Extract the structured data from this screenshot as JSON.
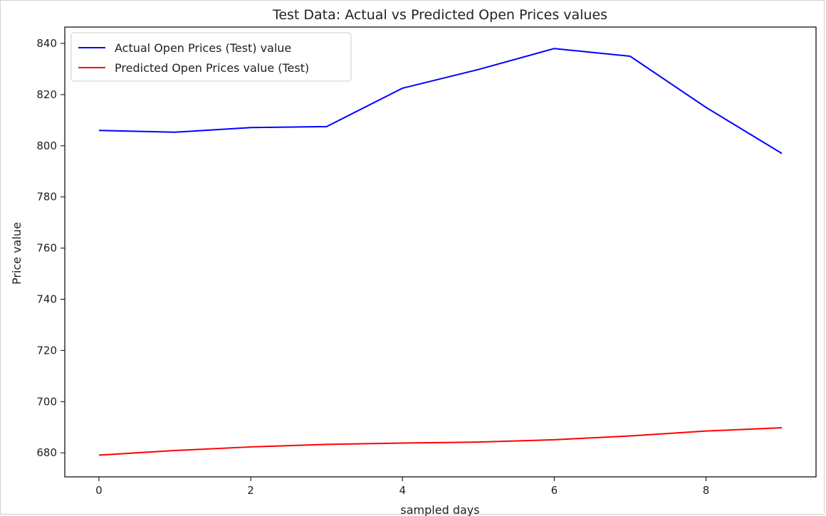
{
  "chart_data": {
    "type": "line",
    "title": "Test Data: Actual vs Predicted Open Prices values",
    "xlabel": "sampled days",
    "ylabel": "Price value",
    "x": [
      0,
      1,
      2,
      3,
      4,
      5,
      6,
      7,
      8,
      9
    ],
    "xlim": [
      -0.45,
      9.45
    ],
    "ylim": [
      670.6,
      846.4
    ],
    "xticks": [
      0,
      2,
      4,
      6,
      8
    ],
    "yticks": [
      680,
      700,
      720,
      740,
      760,
      780,
      800,
      820,
      840
    ],
    "grid": false,
    "legend": "top-left",
    "series": [
      {
        "name": "Actual Open Prices (Test) value",
        "color": "#0000ff",
        "values": [
          806.0,
          805.3,
          807.1,
          807.5,
          822.5,
          829.8,
          838.0,
          835.0,
          815.0,
          797.0
        ]
      },
      {
        "name": "Predicted Open Prices value (Test)",
        "color": "#ff0000",
        "values": [
          679.1,
          680.9,
          682.3,
          683.3,
          683.8,
          684.2,
          685.1,
          686.6,
          688.5,
          689.8
        ]
      }
    ]
  }
}
